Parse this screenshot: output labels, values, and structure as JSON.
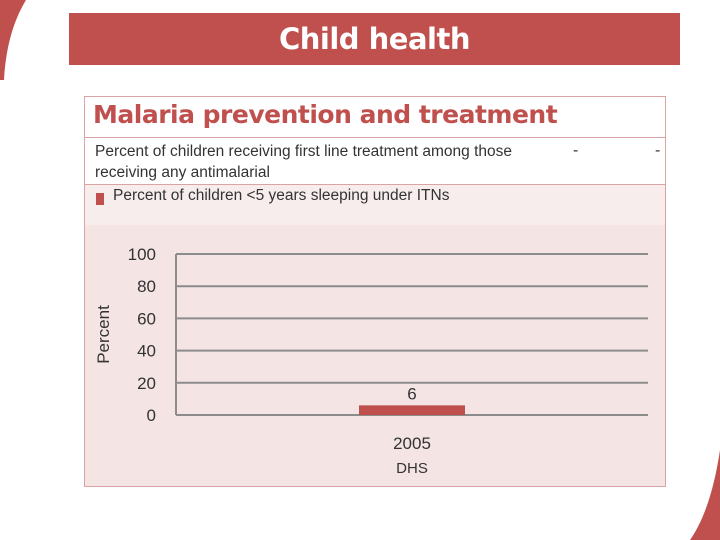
{
  "slide": {
    "title": "Child health"
  },
  "panel": {
    "title": "Malaria prevention and treatment",
    "indicator_1": {
      "label": "Percent of children receiving first line treatment among those receiving any antimalarial",
      "value_1": "-",
      "value_2": "-"
    },
    "indicator_2": {
      "label": "Percent of children <5 years sleeping under ITNs"
    }
  },
  "colors": {
    "accent": "#c0504d",
    "panel_bg": "#f4e4e4"
  },
  "chart_data": {
    "type": "bar",
    "categories": [
      "2005"
    ],
    "category_sublabels": [
      "DHS"
    ],
    "series": [
      {
        "name": "Percent of children <5 years sleeping under ITNs",
        "values": [
          6
        ]
      }
    ],
    "data_labels": [
      "6"
    ],
    "ylabel": "Percent",
    "ylim": [
      0,
      100
    ],
    "yticks": [
      0,
      20,
      40,
      60,
      80,
      100
    ],
    "grid": true
  }
}
